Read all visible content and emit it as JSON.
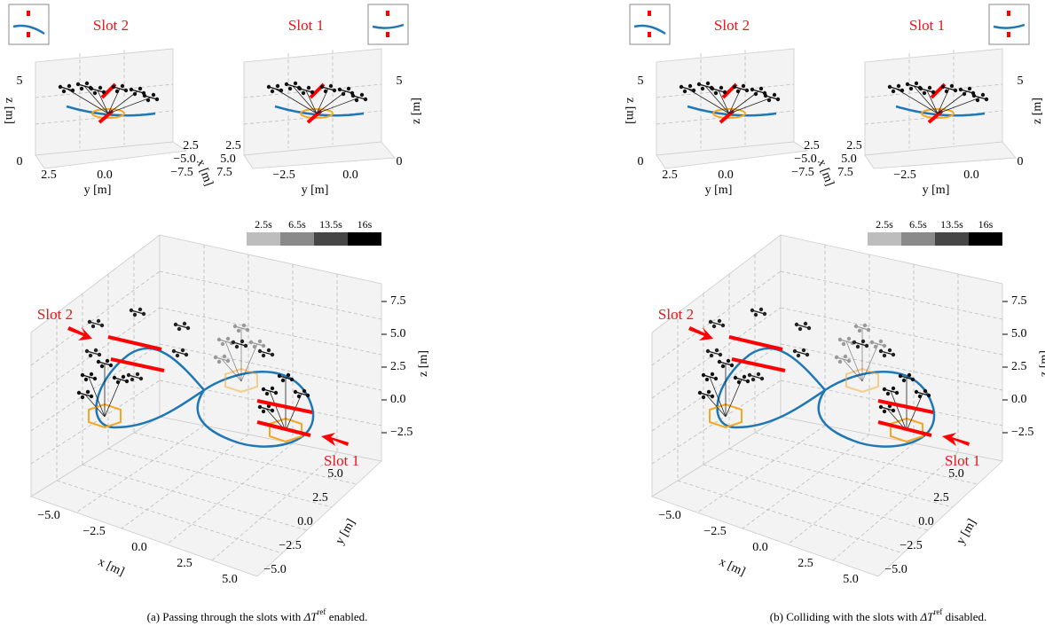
{
  "panels": [
    {
      "top_left": {
        "title": "Slot 2",
        "z_ticks": [
          "5",
          "0"
        ],
        "z_label": "z [m]",
        "y_ticks": [
          "2.5",
          "0.0"
        ],
        "y_label": "y [m]",
        "x_ticks": [
          "2.5",
          "−5.0",
          "−7.5"
        ],
        "x_label": "x [m]"
      },
      "top_right": {
        "title": "Slot 1",
        "z_ticks": [
          "5",
          "0"
        ],
        "z_label": "z [m]",
        "x_ticks": [
          "2.5",
          "5.0",
          "7.5"
        ],
        "y_ticks": [
          "−2.5",
          "0.0"
        ],
        "y_label": "y [m]"
      },
      "colorbar": [
        "2.5s",
        "6.5s",
        "13.5s",
        "16s"
      ],
      "main": {
        "z_ticks": [
          "7.5",
          "5.0",
          "2.5",
          "0.0",
          "−2.5"
        ],
        "z_label": "z [m]",
        "y_ticks": [
          "5.0",
          "2.5",
          "0.0",
          "−2.5",
          "−5.0"
        ],
        "y_label": "y [m]",
        "x_ticks": [
          "−5.0",
          "−2.5",
          "0.0",
          "2.5",
          "5.0"
        ],
        "x_label": "x [m]",
        "slot_labels": [
          "Slot 2",
          "Slot 1"
        ]
      },
      "caption": {
        "prefix": "(a) Passing through the slots with ",
        "symbol": "ΔT",
        "superscript": "ref",
        "suffix": " enabled."
      }
    },
    {
      "top_left": {
        "title": "Slot 2",
        "z_ticks": [
          "5",
          "0"
        ],
        "z_label": "z [m]",
        "y_ticks": [
          "2.5",
          "0.0"
        ],
        "y_label": "y [m]",
        "x_ticks": [
          "2.5",
          "−5.0",
          "−7.5"
        ],
        "x_label": "x [m]"
      },
      "top_right": {
        "title": "Slot 1",
        "z_ticks": [
          "5",
          "0"
        ],
        "z_label": "z [m]",
        "x_ticks": [
          "2.5",
          "5.0",
          "7.5"
        ],
        "y_ticks": [
          "−2.5",
          "0.0"
        ],
        "y_label": "y [m]"
      },
      "colorbar": [
        "2.5s",
        "6.5s",
        "13.5s",
        "16s"
      ],
      "main": {
        "z_ticks": [
          "7.5",
          "5.0",
          "2.5",
          "0.0",
          "−2.5"
        ],
        "z_label": "z [m]",
        "y_ticks": [
          "5.0",
          "2.5",
          "0.0",
          "−2.5",
          "−5.0"
        ],
        "y_label": "y [m]",
        "x_ticks": [
          "−5.0",
          "−2.5",
          "0.0",
          "2.5",
          "5.0"
        ],
        "x_label": "x [m]",
        "slot_labels": [
          "Slot 2",
          "Slot 1"
        ]
      },
      "caption": {
        "prefix": "(b) Colliding with the slots with ",
        "symbol": "ΔT",
        "superscript": "ref",
        "suffix": " disabled."
      }
    }
  ]
}
